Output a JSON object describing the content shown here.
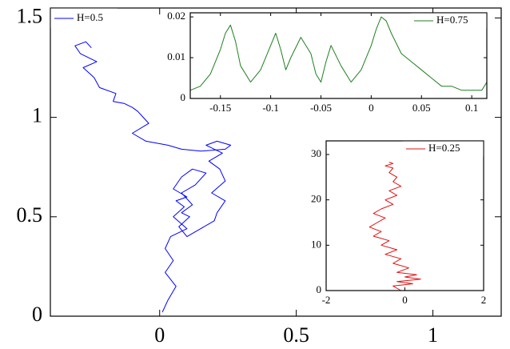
{
  "chart_data": [
    {
      "panel": "main",
      "type": "line",
      "xlim": [
        -0.4,
        1.25
      ],
      "ylim": [
        0,
        1.55
      ],
      "xticks": [
        0,
        0.5,
        1
      ],
      "xtick_labels": [
        "0",
        "0.5",
        "1"
      ],
      "yticks": [
        0,
        0.5,
        1,
        1.5
      ],
      "ytick_labels": [
        "0",
        "0.5",
        "1",
        "1.5"
      ],
      "legend": {
        "position": "top-left"
      },
      "series": [
        {
          "name": "H=0.5",
          "color": "#0000ff",
          "x": [
            0.01,
            0.03,
            0.06,
            0.02,
            0.05,
            0.02,
            0.04,
            0.1,
            0.05,
            0.09,
            0.06,
            0.1,
            0.05,
            0.08,
            0.12,
            0.17,
            0.13,
            0.08,
            0.12,
            0.08,
            0.11,
            0.07,
            0.1,
            0.15,
            0.2,
            0.21,
            0.24,
            0.19,
            0.24,
            0.22,
            0.18,
            0.23,
            0.17,
            0.21,
            0.26,
            0.24,
            0.15,
            0.08,
            0.03,
            -0.05,
            -0.1,
            -0.04,
            -0.06,
            -0.08,
            -0.1,
            -0.13,
            -0.17,
            -0.16,
            -0.22,
            -0.24,
            -0.28,
            -0.23,
            -0.29,
            -0.31,
            -0.27,
            -0.25
          ],
          "y": [
            0.02,
            0.08,
            0.15,
            0.22,
            0.28,
            0.34,
            0.4,
            0.44,
            0.5,
            0.55,
            0.58,
            0.6,
            0.64,
            0.7,
            0.74,
            0.72,
            0.66,
            0.62,
            0.56,
            0.52,
            0.5,
            0.45,
            0.4,
            0.44,
            0.48,
            0.52,
            0.58,
            0.62,
            0.68,
            0.74,
            0.78,
            0.82,
            0.86,
            0.88,
            0.86,
            0.84,
            0.83,
            0.84,
            0.86,
            0.88,
            0.92,
            0.97,
            1.0,
            1.03,
            1.05,
            1.07,
            1.08,
            1.12,
            1.15,
            1.2,
            1.25,
            1.28,
            1.32,
            1.36,
            1.38,
            1.35
          ]
        }
      ]
    },
    {
      "panel": "inset-top",
      "type": "line",
      "xlim": [
        -0.18,
        0.115
      ],
      "ylim": [
        0,
        0.021
      ],
      "xticks": [
        -0.15,
        -0.1,
        -0.05,
        0,
        0.05,
        0.1
      ],
      "xtick_labels": [
        "-0.15",
        "-0.1",
        "-0.05",
        "0",
        "0.05",
        "0.1"
      ],
      "yticks": [
        0,
        0.01,
        0.02
      ],
      "ytick_labels": [
        "0",
        "0.01",
        "0.02"
      ],
      "legend": {
        "position": "top-right"
      },
      "series": [
        {
          "name": "H=0.75",
          "color": "#1f7f1f",
          "x": [
            -0.18,
            -0.17,
            -0.16,
            -0.15,
            -0.145,
            -0.14,
            -0.135,
            -0.13,
            -0.12,
            -0.11,
            -0.1,
            -0.095,
            -0.09,
            -0.085,
            -0.08,
            -0.07,
            -0.06,
            -0.055,
            -0.05,
            -0.045,
            -0.04,
            -0.03,
            -0.02,
            -0.01,
            0.0,
            0.005,
            0.01,
            0.015,
            0.02,
            0.03,
            0.04,
            0.05,
            0.06,
            0.07,
            0.08,
            0.09,
            0.1,
            0.11,
            0.115
          ],
          "y": [
            0.002,
            0.003,
            0.006,
            0.012,
            0.016,
            0.018,
            0.014,
            0.008,
            0.004,
            0.007,
            0.013,
            0.016,
            0.012,
            0.007,
            0.01,
            0.015,
            0.011,
            0.006,
            0.004,
            0.009,
            0.013,
            0.008,
            0.004,
            0.007,
            0.013,
            0.017,
            0.02,
            0.019,
            0.016,
            0.011,
            0.009,
            0.007,
            0.005,
            0.003,
            0.003,
            0.002,
            0.002,
            0.002,
            0.004
          ]
        }
      ]
    },
    {
      "panel": "inset-bottom",
      "type": "line",
      "xlim": [
        -2,
        2
      ],
      "ylim": [
        0,
        33
      ],
      "xticks": [
        -2,
        0,
        2
      ],
      "xtick_labels": [
        "-2",
        "0",
        "2"
      ],
      "yticks": [
        0,
        10,
        20,
        30
      ],
      "ytick_labels": [
        "0",
        "10",
        "20",
        "30"
      ],
      "legend": {
        "position": "top-right"
      },
      "series": [
        {
          "name": "H=0.25",
          "color": "#e01010",
          "x": [
            -0.1,
            -0.3,
            0.2,
            -0.2,
            0.4,
            0.0,
            0.3,
            -0.2,
            0.1,
            -0.3,
            -0.1,
            -0.5,
            -0.2,
            -0.6,
            -0.4,
            -0.8,
            -0.6,
            -0.9,
            -0.7,
            -0.5,
            -0.8,
            -0.6,
            -0.3,
            -0.5,
            -0.2,
            -0.4,
            -0.1,
            -0.3,
            -0.2,
            -0.4,
            -0.3,
            -0.5,
            -0.3,
            -0.4
          ],
          "y": [
            0,
            1,
            1.5,
            2,
            2.5,
            3,
            3.5,
            4,
            5,
            6,
            7,
            8,
            9,
            10,
            11,
            12,
            13,
            14,
            15,
            16,
            17,
            18,
            19,
            20,
            21,
            22,
            23,
            24,
            25,
            26,
            27,
            27.5,
            28,
            28.3
          ]
        }
      ]
    }
  ]
}
